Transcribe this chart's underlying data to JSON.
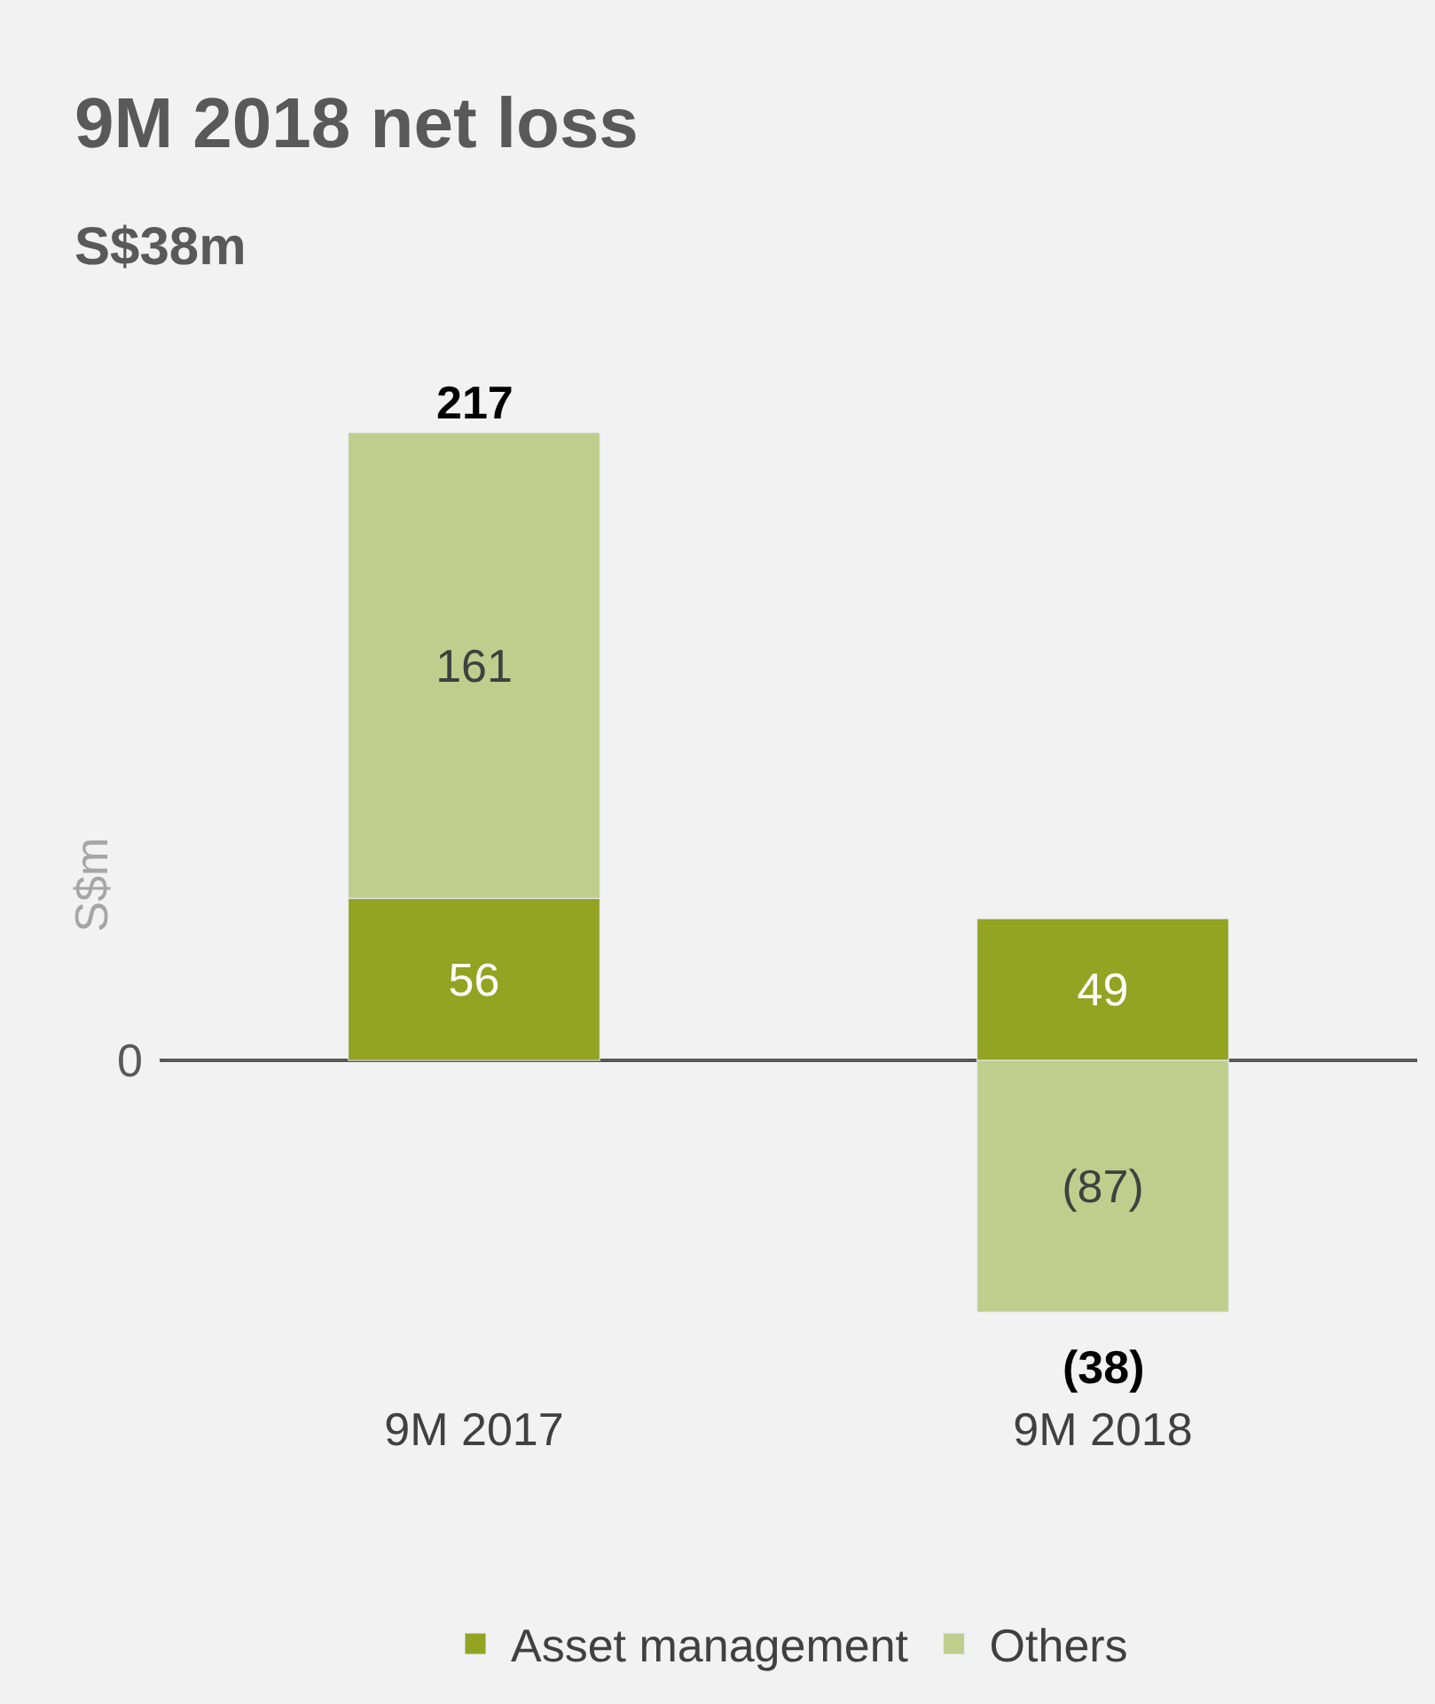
{
  "chart_data": {
    "type": "bar",
    "title": "9M 2018 net loss",
    "subtitle": "S$38m",
    "ylabel": "S$m",
    "categories": [
      "9M 2017",
      "9M 2018"
    ],
    "stacked": true,
    "series": [
      {
        "name": "Asset management",
        "color": "#93a322",
        "values": [
          56,
          49
        ],
        "value_labels": [
          "56",
          "49"
        ]
      },
      {
        "name": "Others",
        "color": "#c1cd8c",
        "values": [
          161,
          -87
        ],
        "value_labels": [
          "161",
          "(87)"
        ]
      }
    ],
    "totals": [
      "217",
      "(38)"
    ],
    "annotations": [
      "0"
    ],
    "grid": false,
    "legend": "bottom"
  }
}
